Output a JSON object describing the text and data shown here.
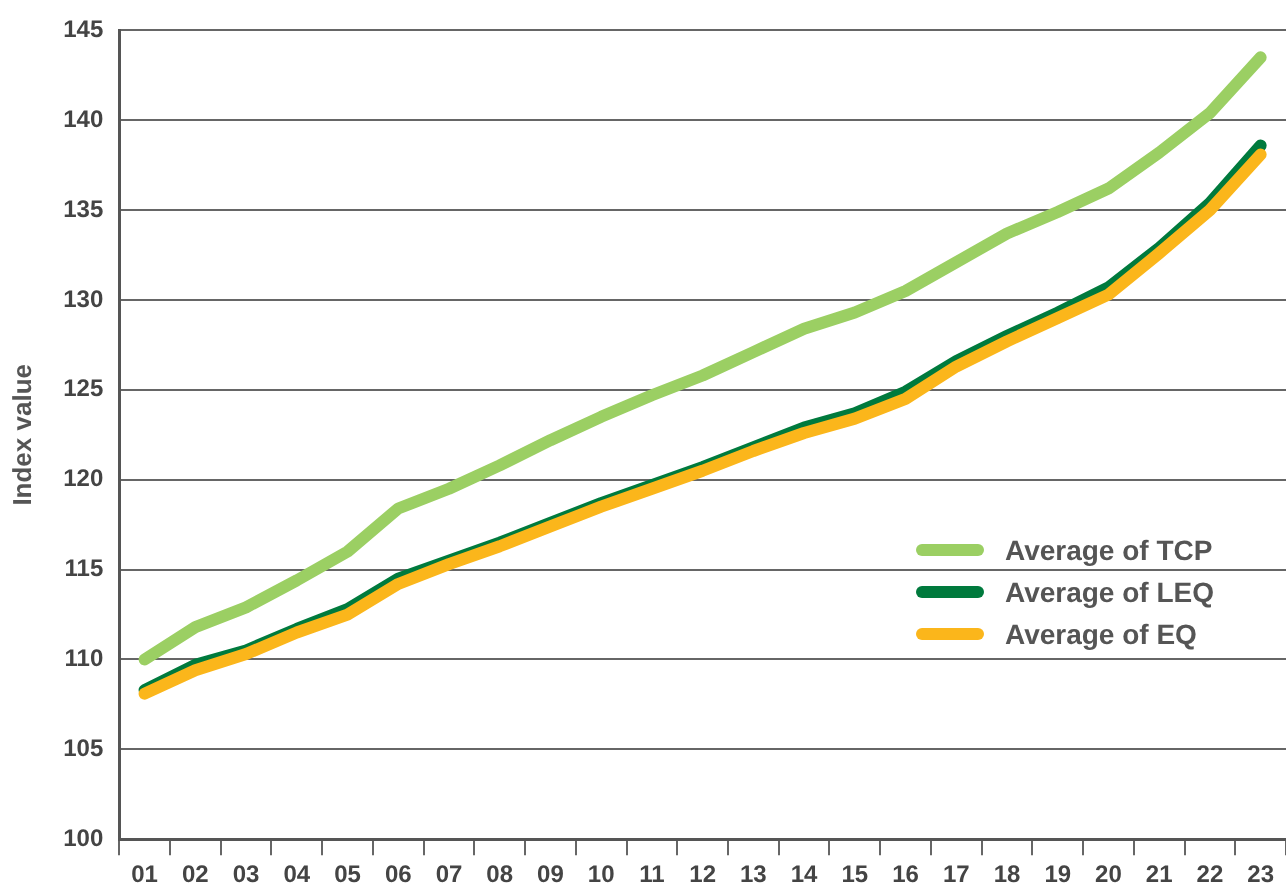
{
  "chart_data": {
    "type": "line",
    "ylabel": "Index value",
    "categories": [
      "01",
      "02",
      "03",
      "04",
      "05",
      "06",
      "07",
      "08",
      "09",
      "10",
      "11",
      "12",
      "13",
      "14",
      "15",
      "16",
      "17",
      "18",
      "19",
      "20",
      "21",
      "22",
      "23"
    ],
    "series": [
      {
        "name": "Average of TCP",
        "color": "#9bcf63",
        "values": [
          110,
          111.8,
          112.9,
          114.4,
          116,
          118.4,
          119.5,
          120.8,
          122.2,
          123.5,
          124.7,
          125.8,
          127.1,
          128.4,
          129.3,
          130.5,
          132.1,
          133.7,
          134.9,
          136.2,
          138.2,
          140.4,
          143.5
        ]
      },
      {
        "name": "Average of EQ",
        "color": "#fbb61b",
        "values": [
          108.1,
          109.4,
          110.3,
          111.5,
          112.5,
          114.2,
          115.3,
          116.3,
          117.4,
          118.5,
          119.5,
          120.5,
          121.6,
          122.6,
          123.4,
          124.5,
          126.3,
          127.7,
          129,
          130.3,
          132.6,
          135,
          138.1
        ]
      },
      {
        "name": "Average of LEQ",
        "color": "#007a3d",
        "values": [
          108.3,
          109.7,
          110.5,
          111.7,
          112.8,
          114.5,
          115.5,
          116.5,
          117.6,
          118.7,
          119.7,
          120.7,
          121.8,
          122.9,
          123.7,
          124.9,
          126.6,
          128,
          129.3,
          130.7,
          132.9,
          135.4,
          138.6
        ]
      }
    ],
    "ylim": [
      100,
      145
    ],
    "yticks": [
      100,
      105,
      110,
      115,
      120,
      125,
      130,
      135,
      140,
      145
    ],
    "grid": "y",
    "legend": "bottom right",
    "marker": "none",
    "line_style": "solid"
  }
}
